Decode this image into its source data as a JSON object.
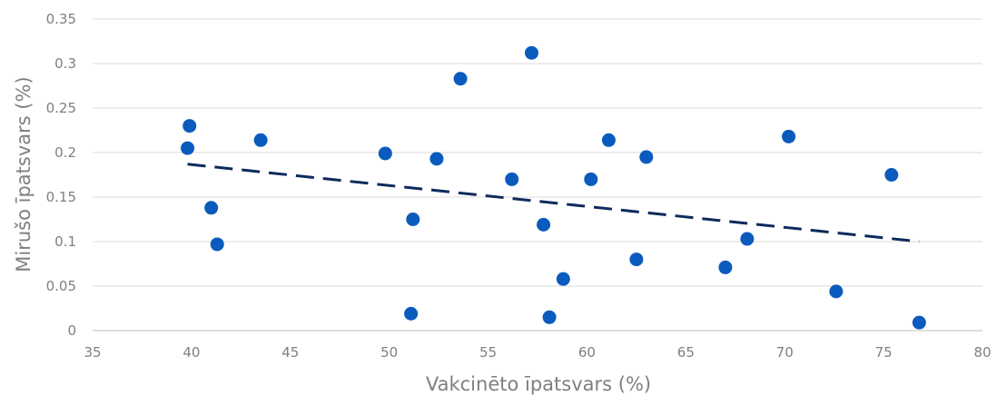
{
  "chart_data": {
    "type": "scatter",
    "title": "",
    "xlabel": "Vakcinēto īpatsvars (%)",
    "ylabel": "Mirušo īpatsvars (%)",
    "xlim": [
      35,
      80
    ],
    "ylim": [
      0,
      0.35
    ],
    "x_ticks": [
      "35",
      "40",
      "45",
      "50",
      "55",
      "60",
      "65",
      "70",
      "75",
      "80"
    ],
    "y_ticks": [
      "0",
      "0.05",
      "0.1",
      "0.15",
      "0.2",
      "0.25",
      "0.3",
      "0.35"
    ],
    "grid": true,
    "legend": "none",
    "colors": {
      "points": "#0a5bbd",
      "trendline": "#0d2a5c"
    },
    "series": [
      {
        "points": [
          {
            "x": 39.8,
            "y": 0.205
          },
          {
            "x": 39.9,
            "y": 0.23
          },
          {
            "x": 41.0,
            "y": 0.138
          },
          {
            "x": 41.3,
            "y": 0.097
          },
          {
            "x": 43.5,
            "y": 0.214
          },
          {
            "x": 49.8,
            "y": 0.199
          },
          {
            "x": 51.1,
            "y": 0.019
          },
          {
            "x": 51.2,
            "y": 0.125
          },
          {
            "x": 52.4,
            "y": 0.193
          },
          {
            "x": 53.6,
            "y": 0.283
          },
          {
            "x": 56.2,
            "y": 0.17
          },
          {
            "x": 57.2,
            "y": 0.312
          },
          {
            "x": 57.8,
            "y": 0.119
          },
          {
            "x": 58.1,
            "y": 0.015
          },
          {
            "x": 58.8,
            "y": 0.058
          },
          {
            "x": 60.2,
            "y": 0.17
          },
          {
            "x": 61.1,
            "y": 0.214
          },
          {
            "x": 62.5,
            "y": 0.08
          },
          {
            "x": 63.0,
            "y": 0.195
          },
          {
            "x": 67.0,
            "y": 0.071
          },
          {
            "x": 68.1,
            "y": 0.103
          },
          {
            "x": 70.2,
            "y": 0.218
          },
          {
            "x": 72.6,
            "y": 0.044
          },
          {
            "x": 75.4,
            "y": 0.175
          },
          {
            "x": 76.8,
            "y": 0.009
          }
        ]
      }
    ],
    "trendline": {
      "type": "linear",
      "style": "dashed",
      "x": [
        39.8,
        76.8
      ],
      "y": [
        0.187,
        0.1
      ]
    }
  }
}
